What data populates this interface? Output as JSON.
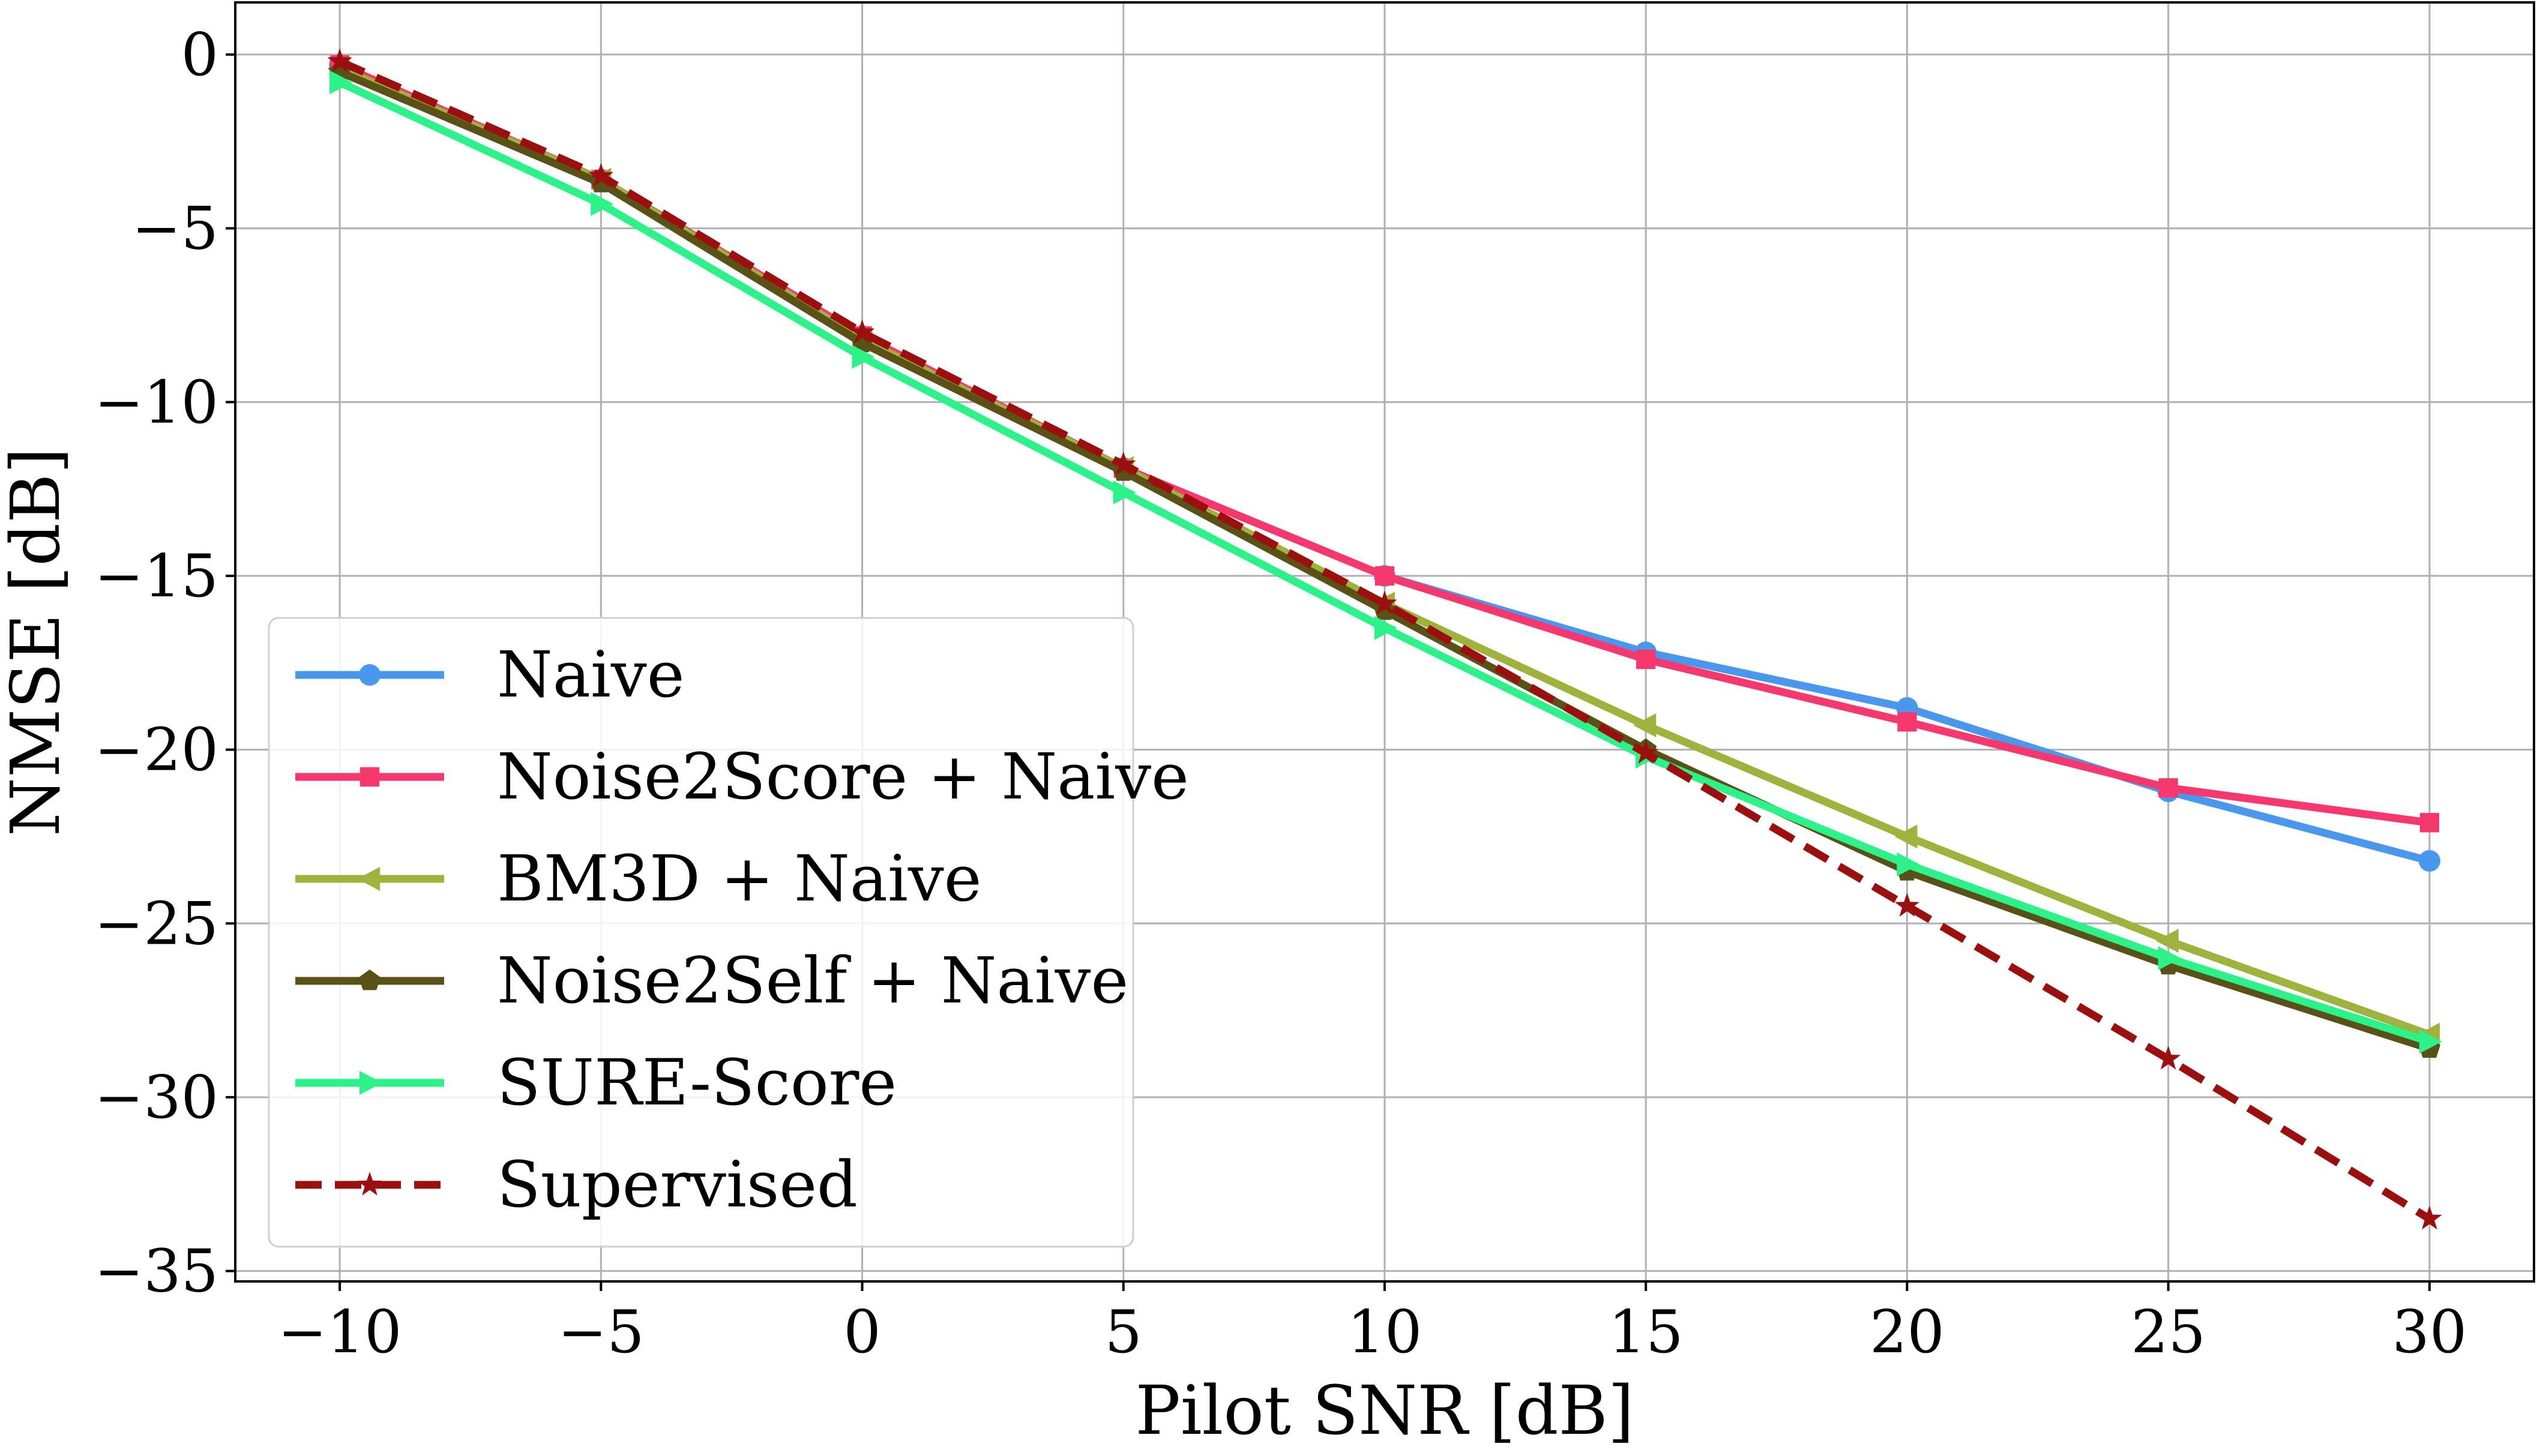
{
  "chart_data": {
    "type": "line",
    "title": "",
    "xlabel": "Pilot SNR [dB]",
    "ylabel": "NMSE [dB]",
    "x": [
      -10,
      -5,
      0,
      5,
      10,
      15,
      20,
      25,
      30
    ],
    "xlim": [
      -12,
      32
    ],
    "ylim": [
      -35.3,
      1.5
    ],
    "xticks": [
      -10,
      -5,
      0,
      5,
      10,
      15,
      20,
      25,
      30
    ],
    "xtick_labels": [
      "−10",
      "−5",
      "0",
      "5",
      "10",
      "15",
      "20",
      "25",
      "30"
    ],
    "yticks": [
      0,
      -5,
      -10,
      -15,
      -20,
      -25,
      -30,
      -35
    ],
    "ytick_labels": [
      "0",
      "−5",
      "−10",
      "−15",
      "−20",
      "−25",
      "−30",
      "−35"
    ],
    "grid": true,
    "legend_position": "lower-left",
    "series": [
      {
        "name": "Naive",
        "color": "#4a98ee",
        "marker": "circle",
        "dashed": false,
        "values": [
          -0.3,
          -3.6,
          -8.1,
          -11.9,
          -15.0,
          -17.2,
          -18.8,
          -21.2,
          -23.2
        ]
      },
      {
        "name": "Noise2Score + Naive",
        "color": "#f7386f",
        "marker": "square",
        "dashed": false,
        "values": [
          -0.3,
          -3.6,
          -8.1,
          -11.9,
          -15.0,
          -17.4,
          -19.2,
          -21.1,
          -22.1
        ]
      },
      {
        "name": "BM3D + Naive",
        "color": "#9fb23c",
        "marker": "triangle-left",
        "dashed": false,
        "values": [
          -0.4,
          -3.6,
          -8.2,
          -11.9,
          -15.8,
          -19.3,
          -22.5,
          -25.5,
          -28.2
        ]
      },
      {
        "name": "Noise2Self + Naive",
        "color": "#5a5116",
        "marker": "pentagon",
        "dashed": false,
        "values": [
          -0.5,
          -3.7,
          -8.3,
          -12.0,
          -16.0,
          -20.0,
          -23.5,
          -26.2,
          -28.6
        ]
      },
      {
        "name": "SURE-Score",
        "color": "#2df28a",
        "marker": "triangle-right",
        "dashed": false,
        "values": [
          -0.8,
          -4.3,
          -8.7,
          -12.6,
          -16.5,
          -20.2,
          -23.3,
          -26.0,
          -28.4
        ]
      },
      {
        "name": "Supervised",
        "color": "#9b0f0f",
        "marker": "star",
        "dashed": true,
        "values": [
          -0.2,
          -3.5,
          -8.0,
          -11.8,
          -15.8,
          -20.1,
          -24.5,
          -28.9,
          -33.5
        ]
      }
    ]
  }
}
